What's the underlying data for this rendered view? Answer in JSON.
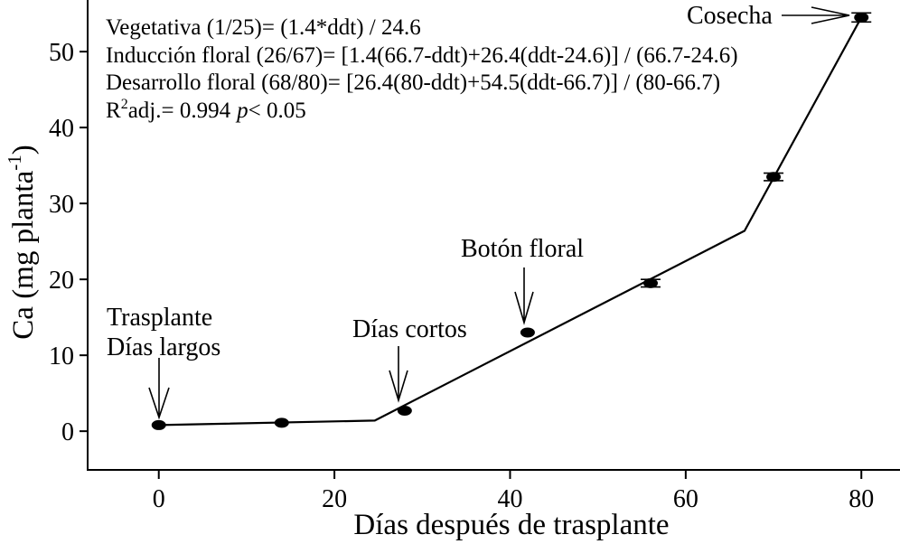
{
  "chart_data": {
    "type": "scatter",
    "x": [
      0,
      14,
      28,
      42,
      56,
      70,
      80
    ],
    "y": [
      0.8,
      1.1,
      2.7,
      13.0,
      19.5,
      33.5,
      54.5
    ],
    "yerr": [
      0,
      0,
      0,
      0,
      0.5,
      0.5,
      0.6
    ],
    "fit": {
      "x": [
        0,
        24.6,
        66.7,
        80
      ],
      "y": [
        0.8,
        1.4,
        26.4,
        54.5
      ]
    },
    "xlabel": "Días después de trasplante",
    "ylabel": {
      "main": "Ca (mg planta",
      "sup": "-1",
      "close": ")"
    },
    "xlim": [
      -8.1,
      84.4
    ],
    "ylim": [
      -5.1,
      56.8
    ],
    "xticks": [
      0,
      20,
      40,
      60,
      80
    ],
    "yticks": [
      0,
      10,
      20,
      30,
      40,
      50
    ],
    "grid": false,
    "equations": [
      "Vegetativa (1/25)= (1.4*ddt) / 24.6",
      "Inducción floral (26/67)= [1.4(66.7-ddt)+26.4(ddt-24.6)] / (66.7-24.6)",
      "Desarrollo floral (68/80)= [26.4(80-ddt)+54.5(ddt-66.7)] / (80-66.7)"
    ],
    "stats": {
      "r": "R",
      "sup": "2",
      "adj": "adj.= 0.994",
      "p": "p",
      "cond": "< 0.05"
    },
    "annotations": {
      "trasplante": "Trasplante",
      "dias_largos": "Días largos",
      "dias_cortos": "Días cortos",
      "boton_floral": "Botón floral",
      "cosecha": "Cosecha"
    },
    "colors": {
      "marks": "#000000",
      "background": "#ffffff"
    }
  }
}
